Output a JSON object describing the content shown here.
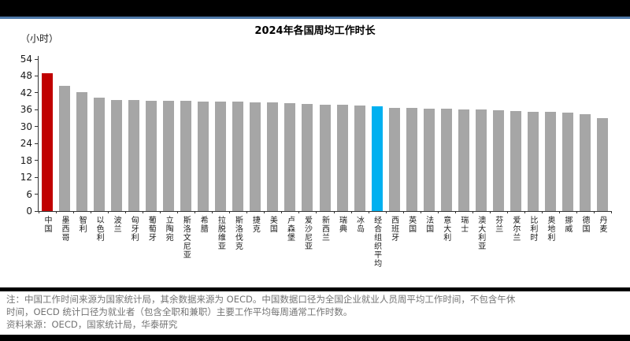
{
  "chart_data": {
    "type": "bar",
    "title": "2024年各国周均工作时长",
    "unit": "（小时）",
    "categories": [
      "中国",
      "墨西哥",
      "智利",
      "以色利",
      "波兰",
      "匈牙利",
      "葡萄牙",
      "立陶宛",
      "斯洛文尼亚",
      "希腊",
      "拉脱维亚",
      "斯洛伐克",
      "捷克",
      "美国",
      "卢森堡",
      "爱沙尼亚",
      "新西兰",
      "瑞典",
      "冰岛",
      "经合组织平均",
      "西班牙",
      "英国",
      "法国",
      "意大利",
      "瑞士",
      "澳大利亚",
      "芬兰",
      "爱尔兰",
      "比利时",
      "奥地利",
      "挪威",
      "德国",
      "丹麦"
    ],
    "values": [
      49.0,
      44.6,
      42.2,
      40.4,
      39.5,
      39.4,
      39.3,
      39.2,
      39.1,
      39.0,
      38.9,
      38.8,
      38.7,
      38.5,
      38.3,
      38.1,
      37.9,
      37.7,
      37.5,
      37.1,
      36.8,
      36.7,
      36.5,
      36.4,
      36.2,
      36.0,
      35.8,
      35.5,
      35.4,
      35.2,
      34.9,
      34.4,
      33.0
    ],
    "ylim": [
      0,
      54
    ],
    "ytick_step": 6,
    "grid": false,
    "legend_position": "none",
    "bar_color_default": "#A6A6A6",
    "highlight_bars": [
      {
        "index": 0,
        "category": "中国",
        "color": "#C00000"
      },
      {
        "index": 19,
        "category": "经合组织平均",
        "color": "#00B0F0"
      }
    ]
  },
  "colors": {
    "accent_line": "#4E79A8",
    "top_bar": "#000000",
    "footnote_text": "#737373"
  },
  "footnote": {
    "line1": "注：中国工作时间来源为国家统计局，其余数据来源为 OECD。中国数据口径为全国企业就业人员周平均工作时间，不包含午休",
    "line2": "时间，OECD 统计口径为就业者（包含全职和兼职）主要工作平均每周通常工作时数。",
    "line3": "资料来源：OECD，国家统计局，华泰研究"
  }
}
